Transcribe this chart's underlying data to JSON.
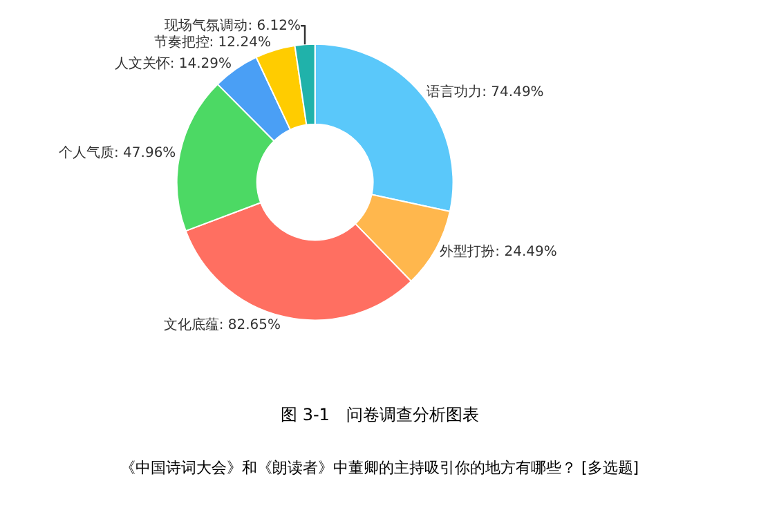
{
  "chart_data": {
    "type": "donut",
    "categories": [
      "语言功力",
      "外型打扮",
      "文化底蕴",
      "个人气质",
      "人文关怀",
      "节奏把控",
      "现场气氛调动"
    ],
    "values": [
      74.49,
      24.49,
      82.65,
      47.96,
      14.29,
      12.24,
      6.12
    ],
    "value_labels": [
      "74.49%",
      "24.49%",
      "82.65%",
      "47.96%",
      "14.29%",
      "12.24%",
      "6.12%"
    ],
    "colors": [
      "#5ac8fa",
      "#ffb74d",
      "#ff6f61",
      "#4cd964",
      "#4a9ff5",
      "#ffcc00",
      "#20b2aa"
    ],
    "legend": false,
    "annotations": [
      "图 3-1　问卷调查分析图表",
      "《中国诗词大会》和《朗读者》中董卿的主持吸引你的地方有哪些？ [多选题]"
    ]
  }
}
